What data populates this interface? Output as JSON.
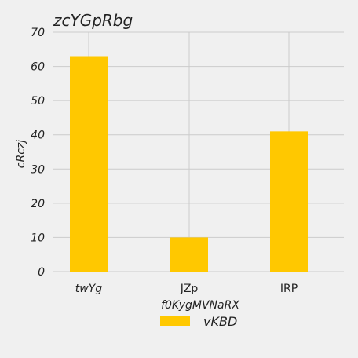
{
  "chart_data": {
    "type": "bar",
    "title": "zcYGpRbg",
    "xlabel": "f0KygMVNaRX",
    "ylabel": "cRczj",
    "categories": [
      "twYg",
      "JZp",
      "IRP"
    ],
    "series": [
      {
        "name": "vKBD",
        "values": [
          63,
          10,
          41
        ],
        "color": "#ffc800"
      }
    ],
    "ylim": [
      0,
      70
    ],
    "yticks": [
      0,
      10,
      20,
      30,
      40,
      50,
      60,
      70
    ],
    "grid": true,
    "legend_position": "bottom-center"
  },
  "colors": {
    "background": "#f0f0f0",
    "grid": "#cbcbcb",
    "bar": "#ffc800"
  }
}
